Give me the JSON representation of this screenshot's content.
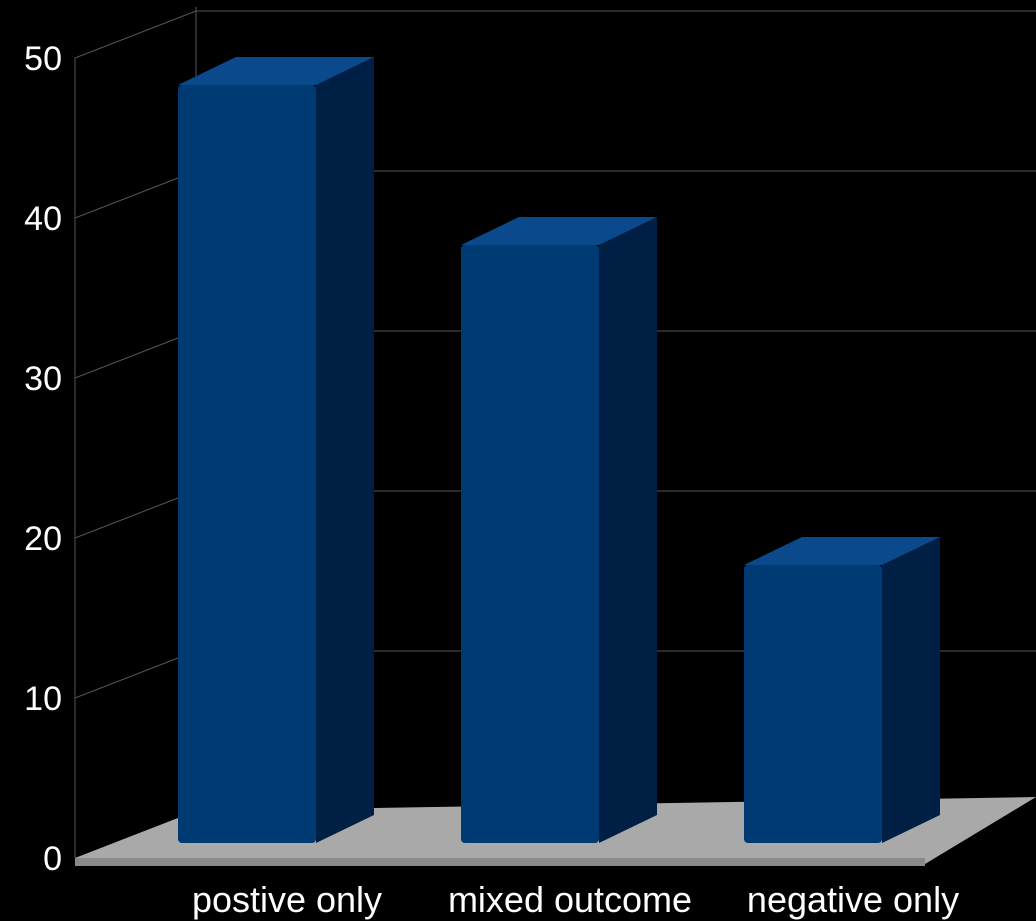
{
  "chart_data": {
    "type": "bar",
    "title": "",
    "xlabel": "",
    "ylabel": "",
    "categories": [
      "postive only",
      "mixed outcome",
      "negative only"
    ],
    "values": [
      47,
      37,
      17
    ],
    "ylim": [
      0,
      50
    ],
    "yticks": [
      0,
      10,
      20,
      30,
      40,
      50
    ],
    "grid": true,
    "legend": "none",
    "style": "3d-column"
  },
  "colors": {
    "background": "#000000",
    "bar_front": "#003a73",
    "bar_side": "#001f45",
    "bar_top": "#0a4a8c",
    "floor": "#a9a9a9",
    "gridline": "#555555",
    "text": "#ffffff"
  }
}
